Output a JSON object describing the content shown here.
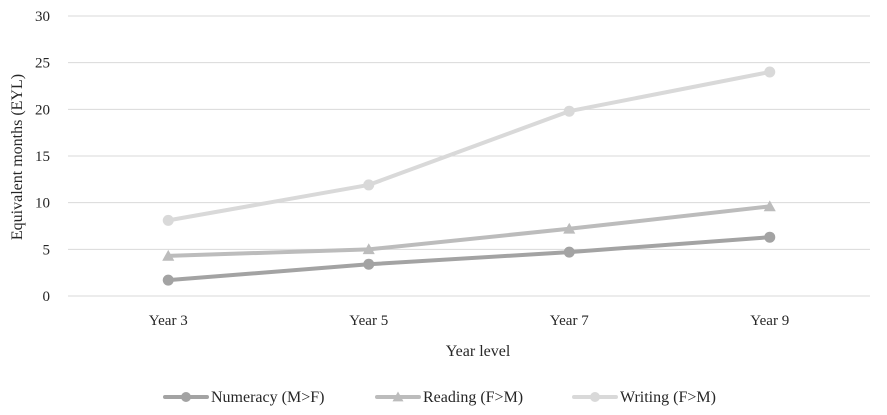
{
  "chart_data": {
    "type": "line",
    "title": "",
    "xlabel": "Year level",
    "ylabel": "Equivalent months (EYL)",
    "categories": [
      "Year 3",
      "Year 5",
      "Year 7",
      "Year 9"
    ],
    "ylim": [
      0,
      30
    ],
    "yticks": [
      0,
      5,
      10,
      15,
      20,
      25,
      30
    ],
    "grid": true,
    "legend_position": "bottom",
    "series": [
      {
        "name": "Numeracy (M>F)",
        "values": [
          1.7,
          3.4,
          4.7,
          6.3
        ],
        "color": "#a3a3a3",
        "marker": "circle"
      },
      {
        "name": "Reading (F>M)",
        "values": [
          4.3,
          5.0,
          7.2,
          9.6
        ],
        "color": "#bcbcbc",
        "marker": "triangle"
      },
      {
        "name": "Writing (F>M)",
        "values": [
          8.1,
          11.9,
          19.8,
          24.0
        ],
        "color": "#d9d9d9",
        "marker": "circle"
      }
    ]
  }
}
